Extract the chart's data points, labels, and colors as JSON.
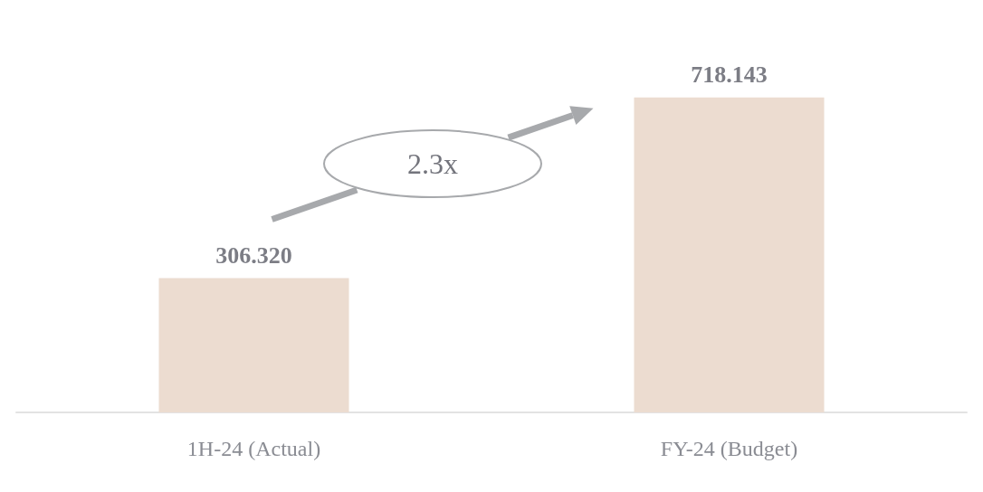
{
  "chart_data": {
    "type": "bar",
    "categories": [
      "1H-24 (Actual)",
      "FY-24 (Budget)"
    ],
    "values": [
      306.32,
      718.143
    ],
    "value_labels": [
      "306.320",
      "718.143"
    ],
    "color": "#ecdcd0",
    "annotations": [
      "2.3x"
    ]
  }
}
